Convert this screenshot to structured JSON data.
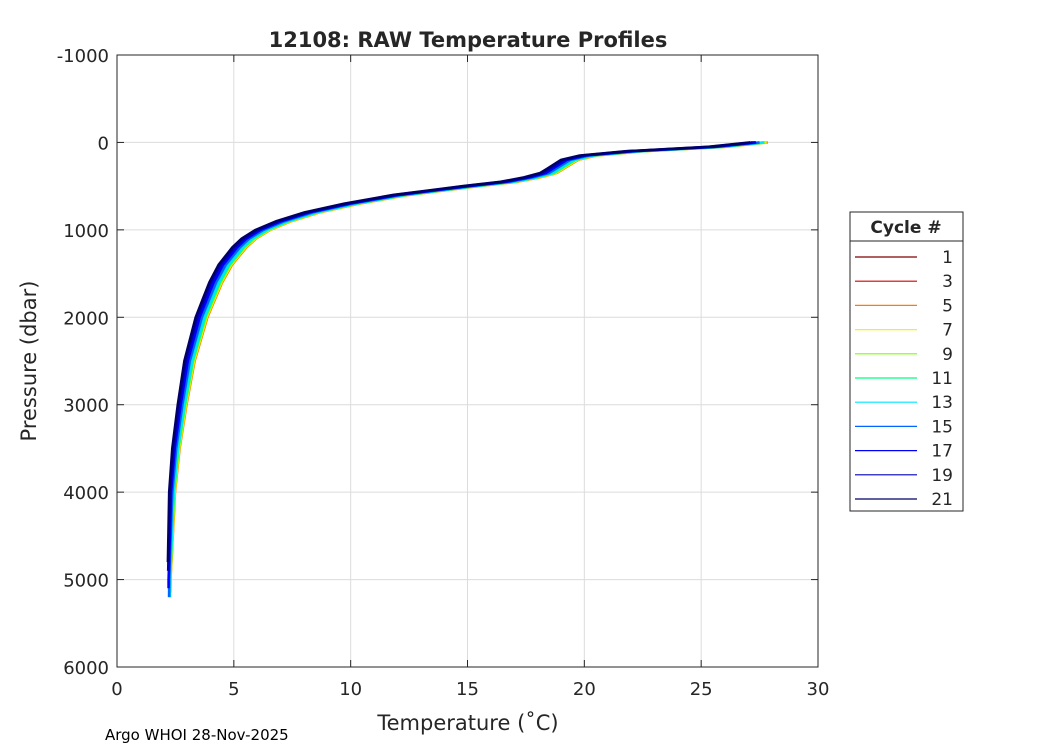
{
  "chart_data": {
    "type": "line",
    "title": "12108: RAW Temperature Profiles",
    "xlabel": "Temperature (˚C)",
    "ylabel": "Pressure (dbar)",
    "xlim": [
      0,
      30
    ],
    "ylim": [
      -1000,
      6000
    ],
    "y_reversed": true,
    "grid": true,
    "xticks": [
      "0",
      "5",
      "10",
      "15",
      "20",
      "25",
      "30"
    ],
    "xtick_values": [
      0,
      5,
      10,
      15,
      20,
      25,
      30
    ],
    "yticks": [
      "-1000",
      "0",
      "1000",
      "2000",
      "3000",
      "4000",
      "5000",
      "6000"
    ],
    "ytick_values": [
      -1000,
      0,
      1000,
      2000,
      3000,
      4000,
      5000,
      6000
    ],
    "legend": {
      "title": "Cycle #",
      "placement": "right"
    },
    "base_profile": {
      "pressure": [
        0,
        50,
        100,
        150,
        200,
        300,
        350,
        400,
        450,
        500,
        550,
        600,
        700,
        800,
        900,
        1000,
        1100,
        1200,
        1300,
        1400,
        1500,
        1600,
        1800,
        2000,
        2500,
        3000,
        3500,
        4000,
        4500,
        5000,
        5200
      ],
      "temperature": [
        27.3,
        25.5,
        22.0,
        20.0,
        19.2,
        18.6,
        18.3,
        17.6,
        16.6,
        15.0,
        13.5,
        12.0,
        9.9,
        8.2,
        7.0,
        6.1,
        5.5,
        5.1,
        4.8,
        4.5,
        4.3,
        4.1,
        3.8,
        3.5,
        3.0,
        2.7,
        2.45,
        2.3,
        2.25,
        2.2,
        2.2
      ]
    },
    "series": [
      {
        "name": "1",
        "color": "#800000",
        "temp_offset": 0.0,
        "max_pressure": 20
      },
      {
        "name": "3",
        "color": "#d10000",
        "temp_offset": 0.0,
        "max_pressure": 30
      },
      {
        "name": "5",
        "color": "#ff7a00",
        "temp_offset": 0.55,
        "max_pressure": 5150
      },
      {
        "name": "7",
        "color": "#f5f500",
        "temp_offset": 0.5,
        "max_pressure": 5150
      },
      {
        "name": "9",
        "color": "#7cff00",
        "temp_offset": 0.45,
        "max_pressure": 5200
      },
      {
        "name": "11",
        "color": "#00ff7f",
        "temp_offset": 0.4,
        "max_pressure": 5200
      },
      {
        "name": "13",
        "color": "#00e5ff",
        "temp_offset": 0.35,
        "max_pressure": 5230
      },
      {
        "name": "15",
        "color": "#0066ff",
        "temp_offset": 0.2,
        "max_pressure": 5250
      },
      {
        "name": "17",
        "color": "#0000ff",
        "temp_offset": 0.05,
        "max_pressure": 5100
      },
      {
        "name": "19",
        "color": "#0000b3",
        "temp_offset": -0.1,
        "max_pressure": 4900
      },
      {
        "name": "21",
        "color": "#000066",
        "temp_offset": -0.2,
        "max_pressure": 4800
      }
    ]
  },
  "footer": "Argo WHOI 28-Nov-2025"
}
